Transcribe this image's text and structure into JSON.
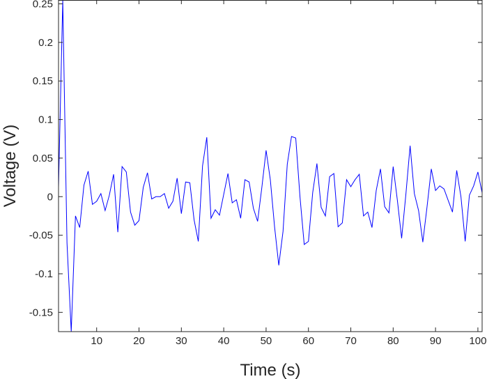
{
  "chart_data": {
    "type": "line",
    "xlabel": "Time (s)",
    "ylabel": "Voltage (V)",
    "xlim": [
      1,
      101
    ],
    "ylim": [
      -0.175,
      0.255
    ],
    "x_ticks": [
      10,
      20,
      30,
      40,
      50,
      60,
      70,
      80,
      90,
      100
    ],
    "y_ticks": [
      -0.15,
      -0.1,
      -0.05,
      0,
      0.05,
      0.1,
      0.15,
      0.2,
      0.25
    ],
    "x_tick_labels": [
      "10",
      "20",
      "30",
      "40",
      "50",
      "60",
      "70",
      "80",
      "90",
      "100"
    ],
    "y_tick_labels": [
      "-0.15",
      "-0.1",
      "-0.05",
      "0",
      "0.05",
      "0.1",
      "0.15",
      "0.2",
      "0.25"
    ],
    "grid": false,
    "series": [
      {
        "color": "#0000ff",
        "x": [
          1,
          2,
          3,
          4,
          5,
          6,
          7,
          8,
          9,
          10,
          11,
          12,
          13,
          14,
          15,
          16,
          17,
          18,
          19,
          20,
          21,
          22,
          23,
          24,
          25,
          26,
          27,
          28,
          29,
          30,
          31,
          32,
          33,
          34,
          35,
          36,
          37,
          38,
          39,
          40,
          41,
          42,
          43,
          44,
          45,
          46,
          47,
          48,
          49,
          50,
          51,
          52,
          53,
          54,
          55,
          56,
          57,
          58,
          59,
          60,
          61,
          62,
          63,
          64,
          65,
          66,
          67,
          68,
          69,
          70,
          71,
          72,
          73,
          74,
          75,
          76,
          77,
          78,
          79,
          80,
          81,
          82,
          83,
          84,
          85,
          86,
          87,
          88,
          89,
          90,
          91,
          92,
          93,
          94,
          95,
          96,
          97,
          98,
          99,
          100,
          101
        ],
        "values": [
          0.012,
          0.255,
          -0.06,
          -0.175,
          -0.025,
          -0.04,
          0.015,
          0.033,
          -0.01,
          -0.006,
          0.004,
          -0.018,
          0.002,
          0.029,
          -0.046,
          0.039,
          0.032,
          -0.02,
          -0.037,
          -0.031,
          0.012,
          0.031,
          -0.003,
          0.0,
          0.0,
          0.004,
          -0.015,
          -0.006,
          0.024,
          -0.022,
          0.019,
          0.018,
          -0.03,
          -0.058,
          0.04,
          0.077,
          -0.028,
          -0.017,
          -0.024,
          0.003,
          0.03,
          -0.008,
          -0.004,
          -0.028,
          0.022,
          0.019,
          -0.015,
          -0.032,
          0.012,
          0.06,
          0.022,
          -0.039,
          -0.089,
          -0.045,
          0.042,
          0.078,
          0.076,
          0.0,
          -0.062,
          -0.058,
          0.005,
          0.043,
          -0.014,
          -0.025,
          0.026,
          0.03,
          -0.039,
          -0.034,
          0.022,
          0.013,
          0.022,
          0.029,
          -0.025,
          -0.02,
          -0.04,
          0.008,
          0.036,
          -0.013,
          -0.021,
          0.039,
          -0.005,
          -0.054,
          0.003,
          0.066,
          0.004,
          -0.018,
          -0.059,
          -0.013,
          0.036,
          0.008,
          0.014,
          0.01,
          -0.005,
          -0.02,
          0.034,
          0.0,
          -0.058,
          0.002,
          0.014,
          0.032,
          0.005
        ]
      }
    ]
  }
}
